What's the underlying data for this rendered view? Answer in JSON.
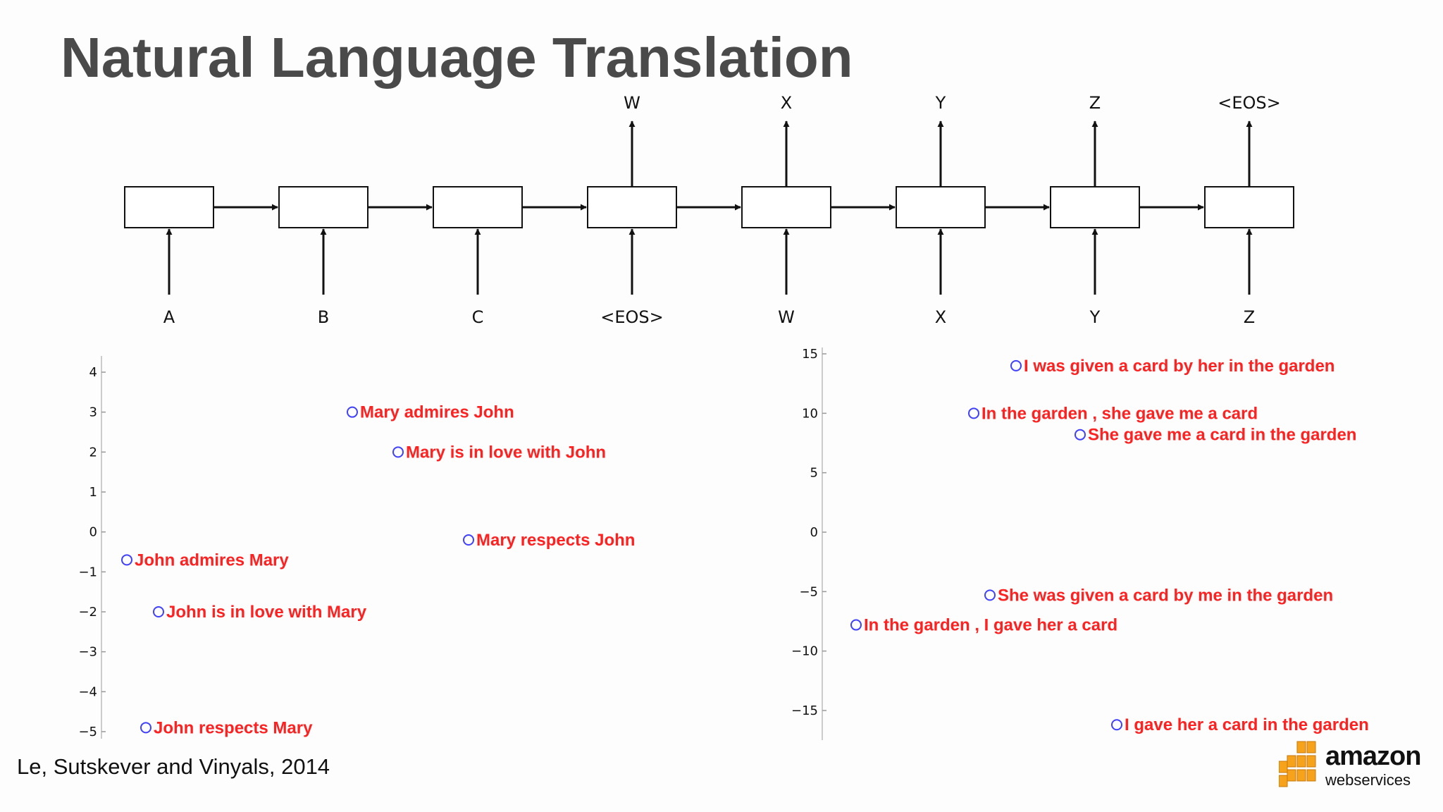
{
  "title": "Natural Language Translation",
  "citation": "Le, Sutskever and Vinyals, 2014",
  "logo": {
    "word": "amazon",
    "sub": "webservices",
    "color": "#f7a21b"
  },
  "seq2seq": {
    "inputs": [
      "A",
      "B",
      "C",
      "<EOS>",
      "W",
      "X",
      "Y",
      "Z"
    ],
    "outputs": [
      "",
      "",
      "",
      "W",
      "X",
      "Y",
      "Z",
      "<EOS>"
    ]
  },
  "chart_data": [
    {
      "type": "scatter",
      "yticks": [
        "4",
        "3",
        "2",
        "1",
        "0",
        "−1",
        "−2",
        "−3",
        "−4",
        "−5"
      ],
      "marker_color": "#4040ff",
      "label_color": "#ff2020",
      "points": [
        {
          "label": "Mary admires John",
          "y": 3.0
        },
        {
          "label": "Mary is in love with John",
          "y": 2.0
        },
        {
          "label": "Mary respects John",
          "y": -0.2
        },
        {
          "label": "John admires Mary",
          "y": -0.7
        },
        {
          "label": "John is in love with Mary",
          "y": -2.0
        },
        {
          "label": "John respects Mary",
          "y": -4.9
        }
      ]
    },
    {
      "type": "scatter",
      "yticks": [
        "15",
        "10",
        "5",
        "0",
        "−5",
        "−10",
        "−15"
      ],
      "marker_color": "#4040ff",
      "label_color": "#ff2020",
      "points": [
        {
          "label": "I was given a card by her in the garden",
          "y": 14.0
        },
        {
          "label": "In the garden , she gave me a card",
          "y": 10.0
        },
        {
          "label": "She gave me a card in the garden",
          "y": 8.2
        },
        {
          "label": "She was given a card by me in the garden",
          "y": -5.3
        },
        {
          "label": "In the garden , I gave her a card",
          "y": -7.8
        },
        {
          "label": "I gave her a card in the garden",
          "y": -16.2
        }
      ]
    }
  ]
}
